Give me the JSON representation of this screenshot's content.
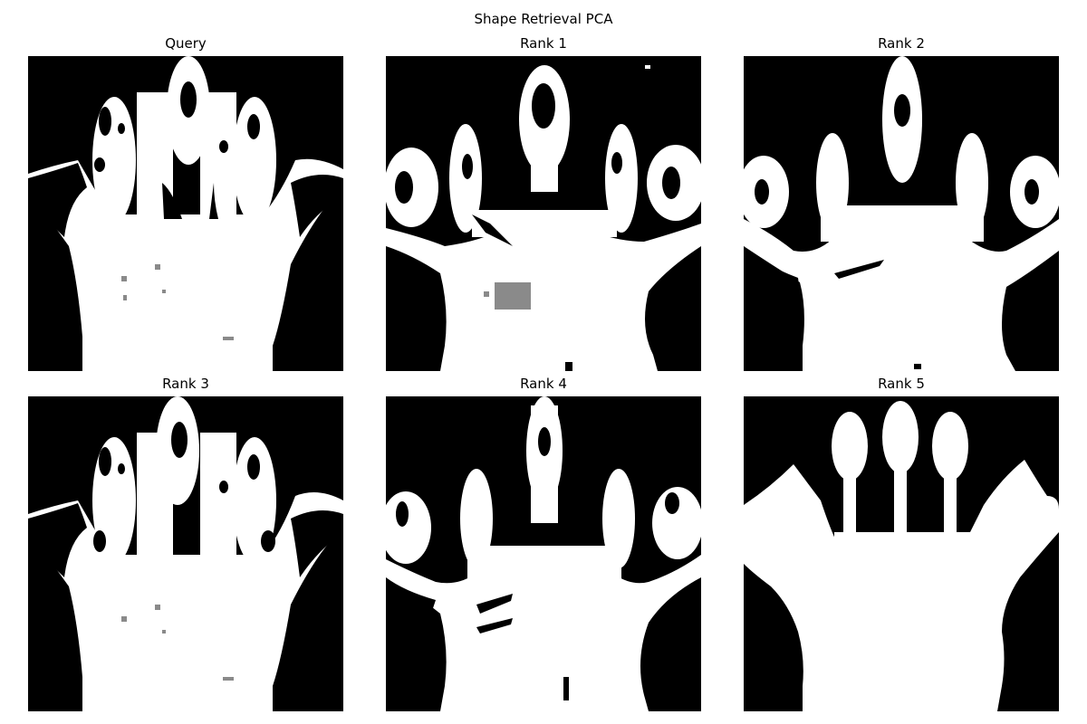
{
  "figure": {
    "title": "Shape Retrieval PCA"
  },
  "panels": [
    {
      "id": "query",
      "title": "Query"
    },
    {
      "id": "rank1",
      "title": "Rank 1"
    },
    {
      "id": "rank2",
      "title": "Rank 2"
    },
    {
      "id": "rank3",
      "title": "Rank 3"
    },
    {
      "id": "rank4",
      "title": "Rank 4"
    },
    {
      "id": "rank5",
      "title": "Rank 5"
    }
  ],
  "colors": {
    "shape": "#ffffff",
    "background": "#000000",
    "hole": "#000000",
    "speckle": "#8a8a8a"
  }
}
